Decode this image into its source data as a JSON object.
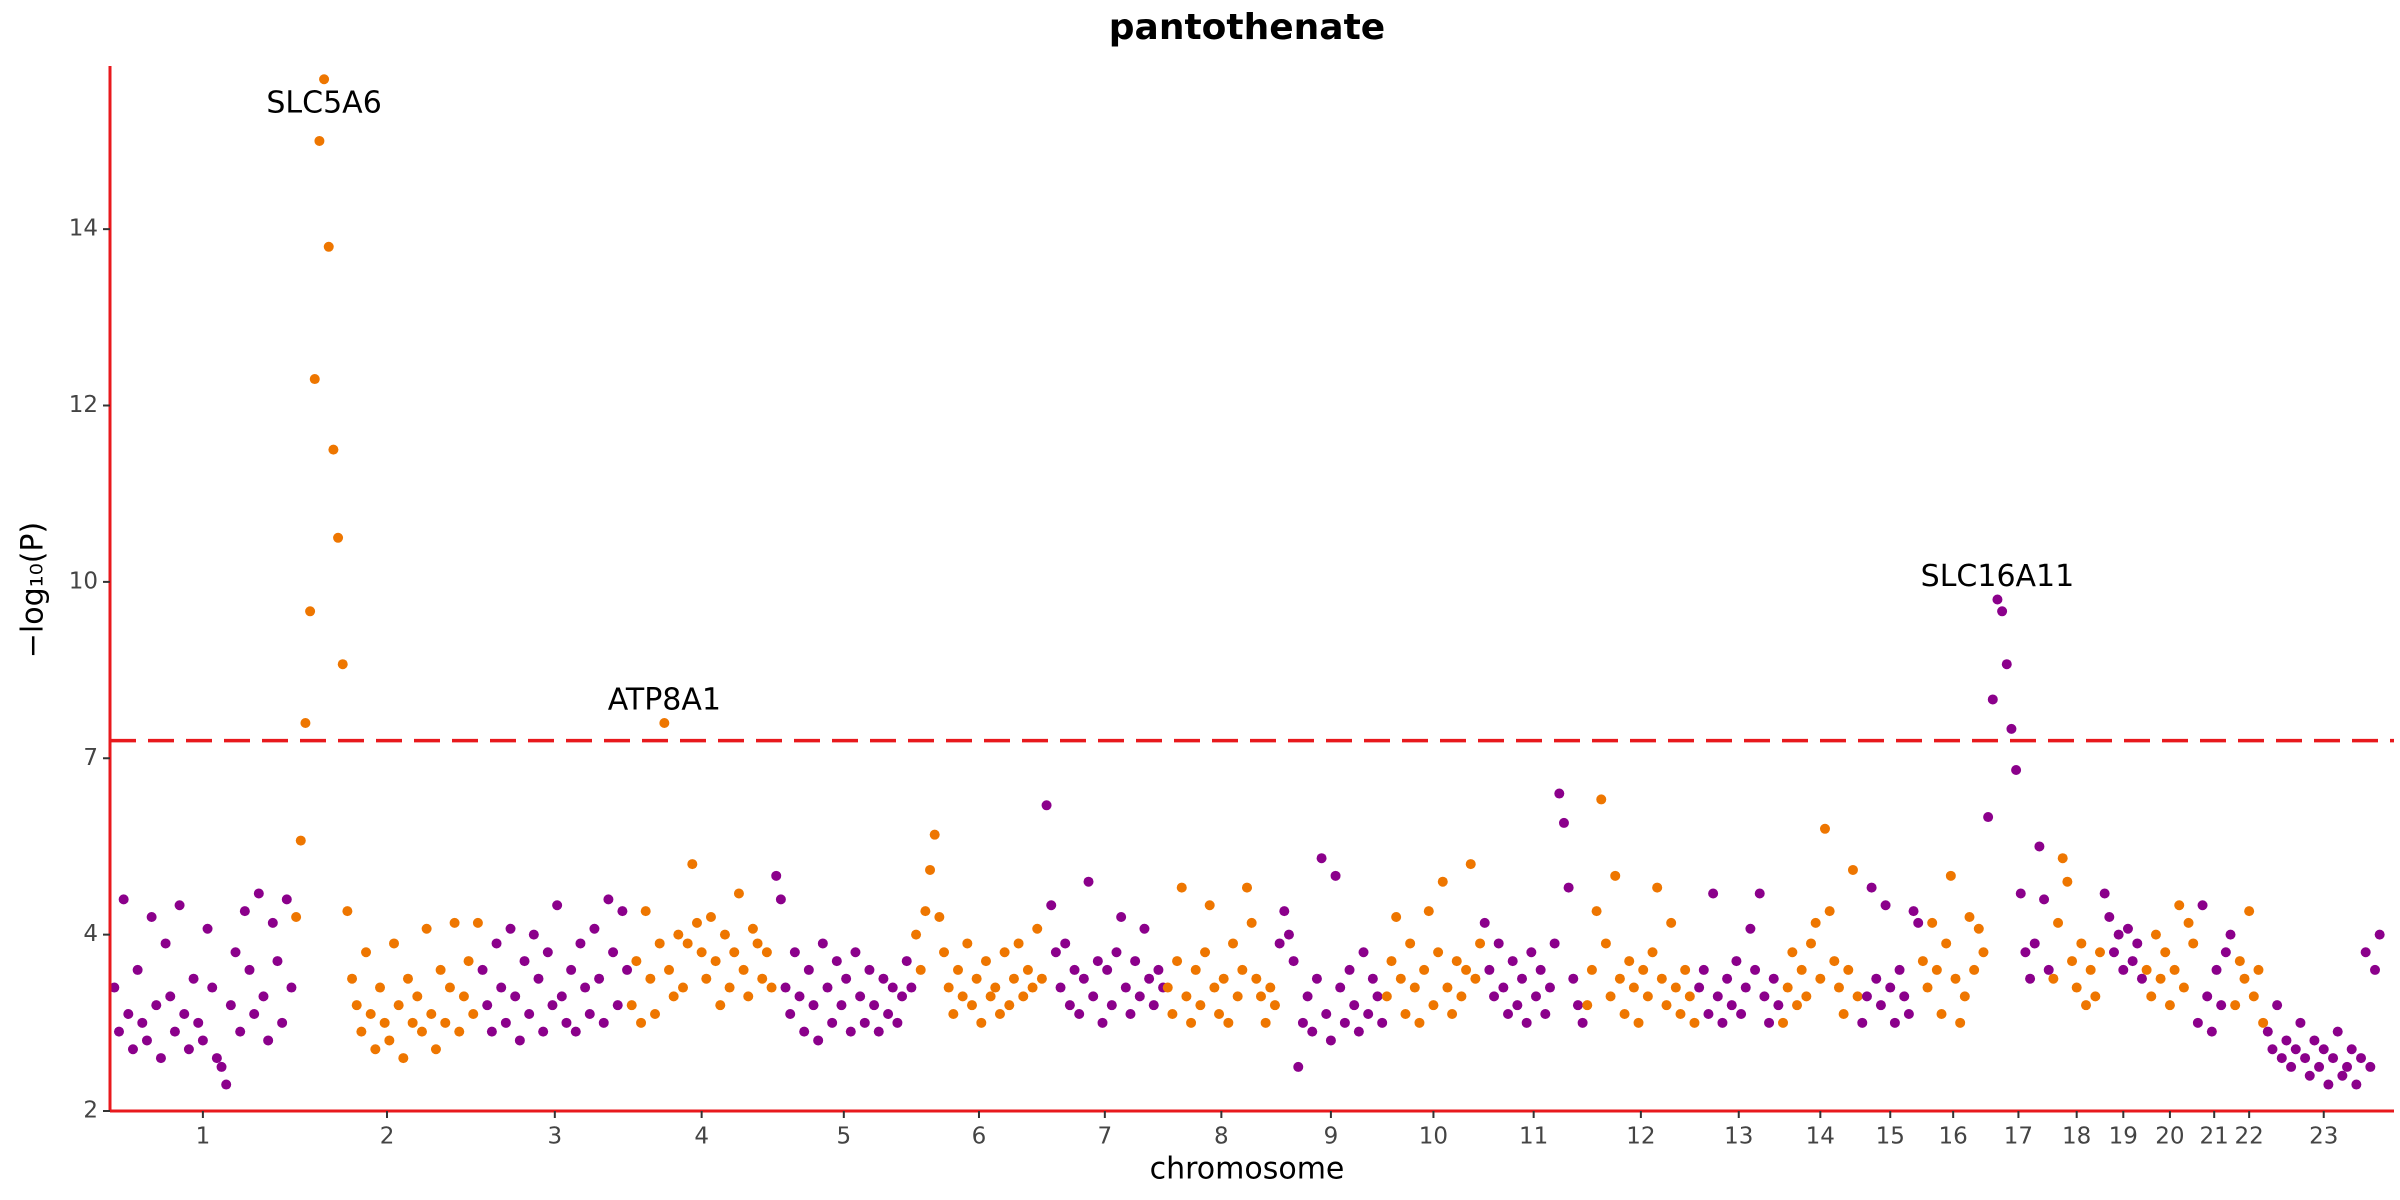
{
  "chart_data": {
    "type": "manhattan",
    "title": "pantothenate",
    "x_label": "chromosome",
    "y_label": "−log₁₀(P)",
    "ylim": [
      2,
      15.85
    ],
    "yticks": [
      2,
      4,
      7,
      10,
      12,
      14
    ],
    "y_scale": "tick-spaced",
    "threshold": 7.3,
    "threshold_color": "#e8191d",
    "axis_color": "#e8191d",
    "colors": [
      "#8b008b",
      "#ee7600"
    ],
    "categories": [
      "1",
      "2",
      "3",
      "4",
      "5",
      "6",
      "7",
      "8",
      "9",
      "10",
      "11",
      "12",
      "13",
      "14",
      "15",
      "16",
      "17",
      "18",
      "19",
      "20",
      "21",
      "22",
      "23"
    ],
    "chromosomes": [
      {
        "values": [
          3.4,
          2.9,
          4.6,
          3.1,
          2.7,
          3.6,
          3.0,
          2.8,
          4.3,
          3.2,
          2.6,
          3.9,
          3.3,
          2.9,
          4.5,
          3.1,
          2.7,
          3.5,
          3.0,
          2.8,
          4.1,
          3.4,
          2.6,
          2.5,
          2.3,
          3.2,
          3.8,
          2.9,
          4.4,
          3.6,
          3.1,
          4.7,
          3.3,
          2.8,
          4.2,
          3.7,
          3.0,
          4.6,
          3.4
        ]
      },
      {
        "values": [
          4.3,
          5.6,
          7.6,
          9.5,
          12.3,
          15.0,
          15.7,
          13.8,
          11.5,
          10.5,
          8.6,
          4.4,
          3.5,
          3.2,
          2.9,
          3.8,
          3.1,
          2.7,
          3.4,
          3.0,
          2.8,
          3.9,
          3.2,
          2.6,
          3.5,
          3.0,
          3.3,
          2.9,
          4.1,
          3.1,
          2.7,
          3.6,
          3.0,
          3.4,
          4.2,
          2.9,
          3.3,
          3.7,
          3.1,
          4.2
        ]
      },
      {
        "values": [
          3.6,
          3.2,
          2.9,
          3.9,
          3.4,
          3.0,
          4.1,
          3.3,
          2.8,
          3.7,
          3.1,
          4.0,
          3.5,
          2.9,
          3.8,
          3.2,
          4.5,
          3.3,
          3.0,
          3.6,
          2.9,
          3.9,
          3.4,
          3.1,
          4.1,
          3.5,
          3.0,
          4.6,
          3.8,
          3.2,
          4.4,
          3.6
        ]
      },
      {
        "values": [
          3.2,
          3.7,
          3.0,
          4.4,
          3.5,
          3.1,
          3.9,
          7.6,
          3.6,
          3.3,
          4.0,
          3.4,
          3.9,
          5.2,
          4.2,
          3.8,
          3.5,
          4.3,
          3.7,
          3.2,
          4.0,
          3.4,
          3.8,
          4.7,
          3.6,
          3.3,
          4.1,
          3.9,
          3.5,
          3.8,
          3.4
        ]
      },
      {
        "values": [
          5.0,
          4.6,
          3.4,
          3.1,
          3.8,
          3.3,
          2.9,
          3.6,
          3.2,
          2.8,
          3.9,
          3.4,
          3.0,
          3.7,
          3.2,
          3.5,
          2.9,
          3.8,
          3.3,
          3.0,
          3.6,
          3.2,
          2.9,
          3.5,
          3.1,
          3.4,
          3.0,
          3.3,
          3.7,
          3.4
        ]
      },
      {
        "values": [
          4.0,
          3.6,
          4.4,
          5.1,
          5.7,
          4.3,
          3.8,
          3.4,
          3.1,
          3.6,
          3.3,
          3.9,
          3.2,
          3.5,
          3.0,
          3.7,
          3.3,
          3.4,
          3.1,
          3.8,
          3.2,
          3.5,
          3.9,
          3.3,
          3.6,
          3.4,
          4.1,
          3.5
        ]
      },
      {
        "values": [
          6.2,
          4.5,
          3.8,
          3.4,
          3.9,
          3.2,
          3.6,
          3.1,
          3.5,
          4.9,
          3.3,
          3.7,
          3.0,
          3.6,
          3.2,
          3.8,
          4.3,
          3.4,
          3.1,
          3.7,
          3.3,
          4.1,
          3.5,
          3.2,
          3.6,
          3.4
        ]
      },
      {
        "values": [
          3.4,
          3.1,
          3.7,
          4.8,
          3.3,
          3.0,
          3.6,
          3.2,
          3.8,
          4.5,
          3.4,
          3.1,
          3.5,
          3.0,
          3.9,
          3.3,
          3.6,
          4.8,
          4.2,
          3.5,
          3.3,
          3.0,
          3.4,
          3.2
        ]
      },
      {
        "values": [
          3.9,
          4.4,
          4.0,
          3.7,
          2.5,
          3.0,
          3.3,
          2.9,
          3.5,
          5.3,
          3.1,
          2.8,
          5.0,
          3.4,
          3.0,
          3.6,
          3.2,
          2.9,
          3.8,
          3.1,
          3.5,
          3.3,
          3.0
        ]
      },
      {
        "values": [
          3.3,
          3.7,
          4.3,
          3.5,
          3.1,
          3.9,
          3.4,
          3.0,
          3.6,
          4.4,
          3.2,
          3.8,
          4.9,
          3.4,
          3.1,
          3.7,
          3.3,
          3.6,
          5.2,
          3.5,
          3.9
        ]
      },
      {
        "values": [
          4.2,
          3.6,
          3.3,
          3.9,
          3.4,
          3.1,
          3.7,
          3.2,
          3.5,
          3.0,
          3.8,
          3.3,
          3.6,
          3.1,
          3.4,
          3.9,
          6.4,
          5.9,
          4.8,
          3.5,
          3.2,
          3.0
        ]
      },
      {
        "values": [
          3.2,
          3.6,
          4.4,
          6.3,
          3.9,
          3.3,
          5.0,
          3.5,
          3.1,
          3.7,
          3.4,
          3.0,
          3.6,
          3.3,
          3.8,
          4.8,
          3.5,
          3.2,
          4.2,
          3.4,
          3.1,
          3.6,
          3.3,
          3.0
        ]
      },
      {
        "values": [
          3.4,
          3.6,
          3.1,
          4.7,
          3.3,
          3.0,
          3.5,
          3.2,
          3.7,
          3.1,
          3.4,
          4.1,
          3.6,
          4.7,
          3.3,
          3.0,
          3.5,
          3.2
        ]
      },
      {
        "values": [
          3.0,
          3.4,
          3.8,
          3.2,
          3.6,
          3.3,
          3.9,
          4.2,
          3.5,
          5.8,
          4.4,
          3.7,
          3.4,
          3.1,
          3.6,
          5.1,
          3.3
        ]
      },
      {
        "values": [
          3.0,
          3.3,
          4.8,
          3.5,
          3.2,
          4.5,
          3.4,
          3.0,
          3.6,
          3.3,
          3.1,
          4.4,
          4.2
        ]
      },
      {
        "values": [
          3.7,
          3.4,
          4.2,
          3.6,
          3.1,
          3.9,
          5.0,
          3.5,
          3.0,
          3.3,
          4.3,
          3.6,
          4.1,
          3.8
        ]
      },
      {
        "values": [
          6.0,
          8.0,
          9.7,
          9.5,
          8.6,
          7.5,
          6.8,
          4.7,
          3.8,
          3.5,
          3.9,
          5.5,
          4.6,
          3.6
        ]
      },
      {
        "values": [
          3.5,
          4.2,
          5.3,
          4.9,
          3.7,
          3.4,
          3.9,
          3.2,
          3.6,
          3.3,
          3.8
        ]
      },
      {
        "values": [
          4.7,
          4.3,
          3.8,
          4.0,
          3.6,
          4.1,
          3.7,
          3.9,
          3.5
        ]
      },
      {
        "values": [
          3.6,
          3.3,
          4.0,
          3.5,
          3.8,
          3.2,
          3.6,
          4.5,
          3.4,
          4.2,
          3.9
        ]
      },
      {
        "values": [
          3.0,
          4.5,
          3.3,
          2.9,
          3.6,
          3.2,
          3.8,
          4.0
        ]
      },
      {
        "values": [
          3.2,
          3.7,
          3.5,
          4.4,
          3.3,
          3.6,
          3.0
        ]
      },
      {
        "values": [
          2.9,
          2.7,
          3.2,
          2.6,
          2.8,
          2.5,
          2.7,
          3.0,
          2.6,
          2.4,
          2.8,
          2.5,
          2.7,
          2.3,
          2.6,
          2.9,
          2.4,
          2.5,
          2.7,
          2.3,
          2.6,
          3.8,
          2.5,
          3.6,
          4.0
        ]
      }
    ],
    "annotations": [
      {
        "text": "SLC5A6",
        "chromosome": "2"
      },
      {
        "text": "ATP8A1",
        "chromosome": "4"
      },
      {
        "text": "SLC16A11",
        "chromosome": "17"
      }
    ]
  }
}
